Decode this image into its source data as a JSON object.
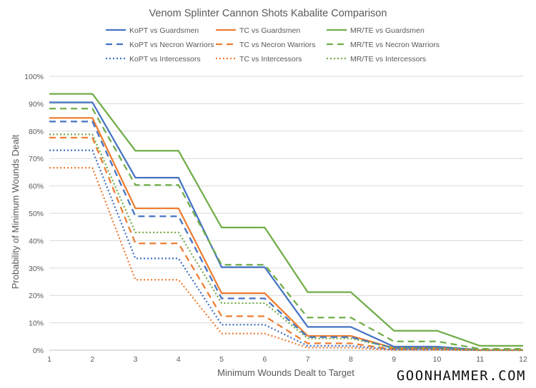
{
  "brand": "GOONHAMMER.COM",
  "chart_data": {
    "type": "line",
    "title": "Venom Splinter Cannon Shots Kabalite Comparison",
    "xlabel": "Minimum Wounds Dealt to Target",
    "ylabel": "Probability of Minimum Wounds Dealt",
    "x": [
      1,
      2,
      3,
      4,
      5,
      6,
      7,
      8,
      9,
      10,
      11,
      12
    ],
    "xlim": [
      1,
      12
    ],
    "ylim": [
      0,
      100
    ],
    "y_ticks": [
      0,
      10,
      20,
      30,
      40,
      50,
      60,
      70,
      80,
      90,
      100
    ],
    "y_tick_format": "percent",
    "grid": "horizontal",
    "legend_position": "top",
    "series": [
      {
        "name": "KoPT vs Guardsmen",
        "color": "#4472C4",
        "style": "solid",
        "values": [
          90.5,
          90.5,
          63.0,
          63.0,
          30.3,
          30.3,
          8.5,
          8.5,
          1.3,
          1.3,
          0.1,
          0.1
        ]
      },
      {
        "name": "TC vs Guardsmen",
        "color": "#ED7D31",
        "style": "solid",
        "values": [
          84.8,
          84.8,
          51.8,
          51.8,
          20.8,
          20.8,
          5.2,
          5.2,
          0.8,
          0.8,
          0.1,
          0.1
        ]
      },
      {
        "name": "MR/TE vs Guardsmen",
        "color": "#70AD47",
        "style": "solid",
        "values": [
          93.6,
          93.6,
          72.8,
          72.8,
          44.8,
          44.8,
          21.2,
          21.2,
          7.1,
          7.1,
          1.6,
          1.6
        ]
      },
      {
        "name": "KoPT vs Necron Warriors",
        "color": "#4472C4",
        "style": "dashed",
        "values": [
          83.5,
          83.5,
          48.9,
          48.9,
          18.9,
          18.9,
          4.8,
          4.8,
          0.7,
          0.7,
          0.1,
          0.1
        ]
      },
      {
        "name": "TC vs Necron Warriors",
        "color": "#ED7D31",
        "style": "dashed",
        "values": [
          77.6,
          77.6,
          39.0,
          39.0,
          12.4,
          12.4,
          2.5,
          2.5,
          0.3,
          0.3,
          0.0,
          0.0
        ]
      },
      {
        "name": "MR/TE vs Necron Warriors",
        "color": "#70AD47",
        "style": "dashed",
        "values": [
          88.2,
          88.2,
          60.3,
          60.3,
          31.2,
          31.2,
          11.9,
          11.9,
          3.2,
          3.2,
          0.5,
          0.5
        ]
      },
      {
        "name": "KoPT vs Intercessors",
        "color": "#4472C4",
        "style": "dotted",
        "values": [
          73.0,
          73.0,
          33.5,
          33.5,
          9.3,
          9.3,
          1.6,
          1.6,
          0.2,
          0.2,
          0.0,
          0.0
        ]
      },
      {
        "name": "TC vs Intercessors",
        "color": "#ED7D31",
        "style": "dotted",
        "values": [
          66.6,
          66.6,
          25.7,
          25.7,
          6.1,
          6.1,
          0.9,
          0.9,
          0.1,
          0.1,
          0.0,
          0.0
        ]
      },
      {
        "name": "MR/TE vs Intercessors",
        "color": "#70AD47",
        "style": "dotted",
        "values": [
          78.8,
          78.8,
          43.0,
          43.0,
          17.2,
          17.2,
          4.3,
          4.3,
          0.8,
          0.8,
          0.1,
          0.1
        ]
      }
    ]
  }
}
